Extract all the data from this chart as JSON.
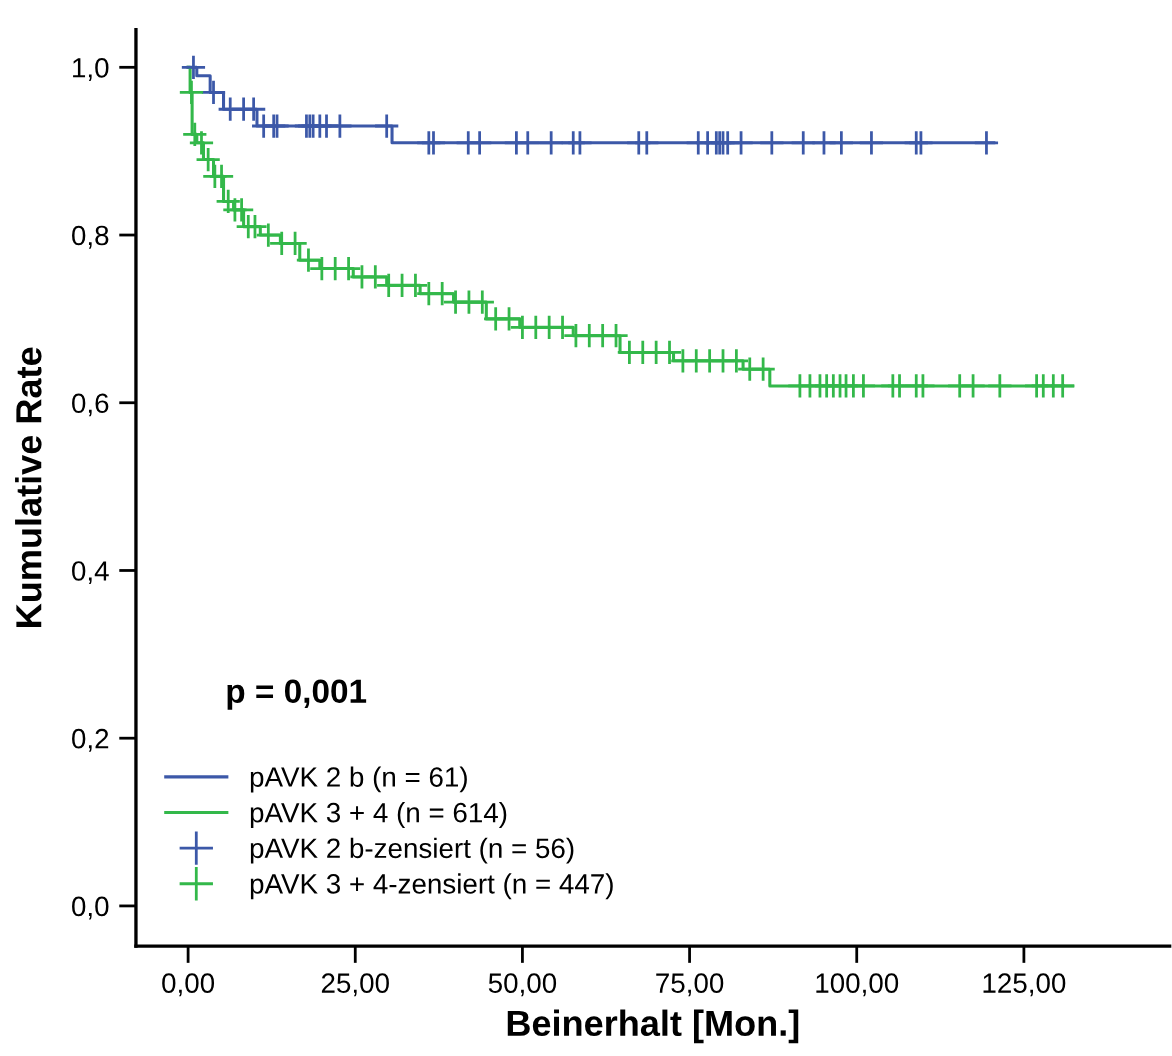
{
  "chart_data": {
    "type": "step",
    "xlabel": "Beinerhalt [Mon.]",
    "ylabel": "Kumulative Rate",
    "xlim": [
      -7.8,
      146.8
    ],
    "ylim": [
      -0.048,
      1.045
    ],
    "xticks": [
      {
        "value": 0,
        "label": "0,00"
      },
      {
        "value": 25,
        "label": "25,00"
      },
      {
        "value": 50,
        "label": "50,00"
      },
      {
        "value": 75,
        "label": "75,00"
      },
      {
        "value": 100,
        "label": "100,00"
      },
      {
        "value": 125,
        "label": "125,00"
      }
    ],
    "yticks": [
      {
        "value": 0,
        "label": "0,0"
      },
      {
        "value": 0.2,
        "label": "0,2"
      },
      {
        "value": 0.4,
        "label": "0,4"
      },
      {
        "value": 0.6,
        "label": "0,6"
      },
      {
        "value": 0.8,
        "label": "0,8"
      },
      {
        "value": 1.0,
        "label": "1,0"
      }
    ],
    "grid": false,
    "legend": "bottom left",
    "annotations": [
      "p = 0,001"
    ],
    "series": [
      {
        "name": "pAVK 2 b (n = 61)",
        "color": "#3c58a8",
        "x": [
          0,
          1.3,
          3.3,
          5.3,
          10.3,
          30.5,
          120.5
        ],
        "values": [
          1.0,
          0.99,
          0.97,
          0.95,
          0.93,
          0.91,
          0.91
        ]
      },
      {
        "name": "pAVK 3 + 4 (n = 614)",
        "color": "#33b84a",
        "x": [
          0,
          0.3,
          0.6,
          1.3,
          2.3,
          3.8,
          5.3,
          6.8,
          8.3,
          10.8,
          13.8,
          16.7,
          19.7,
          24.7,
          29.7,
          34.7,
          39.7,
          44.6,
          49.6,
          57.6,
          64.6,
          72.6,
          83.0,
          87.0,
          132.3
        ],
        "values": [
          1.0,
          0.97,
          0.92,
          0.91,
          0.89,
          0.87,
          0.84,
          0.83,
          0.81,
          0.8,
          0.79,
          0.77,
          0.76,
          0.75,
          0.74,
          0.73,
          0.72,
          0.7,
          0.69,
          0.68,
          0.66,
          0.65,
          0.64,
          0.62,
          0.62
        ]
      },
      {
        "name": "pAVK 2 b-zensiert (n = 56)",
        "type": "scatter",
        "marker": "cross",
        "color": "#3c58a8",
        "x": [
          0.8,
          3.8,
          6.3,
          8.3,
          9.8,
          11.3,
          12.8,
          13.3,
          17.7,
          18.2,
          18.7,
          19.7,
          20.7,
          22.7,
          29.7,
          36.0,
          36.7,
          41.9,
          43.6,
          49.1,
          50.8,
          54.3,
          57.6,
          58.6,
          67.4,
          68.6,
          76.3,
          77.7,
          79.0,
          79.5,
          80.0,
          80.7,
          82.7,
          87.3,
          92.0,
          95.1,
          97.7,
          102.2,
          108.9,
          109.6,
          119.4
        ],
        "values": [
          1.0,
          0.97,
          0.95,
          0.95,
          0.95,
          0.93,
          0.93,
          0.93,
          0.93,
          0.93,
          0.93,
          0.93,
          0.93,
          0.93,
          0.93,
          0.91,
          0.91,
          0.91,
          0.91,
          0.91,
          0.91,
          0.91,
          0.91,
          0.91,
          0.91,
          0.91,
          0.91,
          0.91,
          0.91,
          0.91,
          0.91,
          0.91,
          0.91,
          0.91,
          0.91,
          0.91,
          0.91,
          0.91,
          0.91,
          0.91,
          0.91
        ]
      },
      {
        "name": "pAVK 3 + 4-zensiert (n = 447)",
        "type": "scatter",
        "marker": "cross",
        "color": "#33b84a",
        "x": [
          0.5,
          1,
          2,
          3,
          4,
          5,
          6,
          7,
          8,
          9,
          10,
          12,
          14,
          16,
          18,
          20,
          22,
          24,
          26,
          28,
          30,
          32,
          34,
          36,
          38,
          40,
          42,
          44,
          46,
          48,
          50,
          52,
          54,
          56,
          58,
          60,
          62,
          64,
          66,
          68,
          70,
          72,
          74,
          76,
          78,
          80,
          82,
          84,
          86,
          91.5,
          93.0,
          94.5,
          95.5,
          96.5,
          97.5,
          98.4,
          99.5,
          101.0,
          105.4,
          106.4,
          108.9,
          109.9,
          115.4,
          117.4,
          121.4,
          126.9,
          127.9,
          129.4,
          130.8
        ],
        "values": [
          0.97,
          0.92,
          0.91,
          0.89,
          0.87,
          0.87,
          0.84,
          0.83,
          0.83,
          0.81,
          0.81,
          0.8,
          0.79,
          0.79,
          0.77,
          0.76,
          0.76,
          0.76,
          0.75,
          0.75,
          0.74,
          0.74,
          0.74,
          0.73,
          0.73,
          0.72,
          0.72,
          0.72,
          0.7,
          0.7,
          0.69,
          0.69,
          0.69,
          0.69,
          0.68,
          0.68,
          0.68,
          0.68,
          0.66,
          0.66,
          0.66,
          0.66,
          0.65,
          0.65,
          0.65,
          0.65,
          0.65,
          0.64,
          0.64,
          0.62,
          0.62,
          0.62,
          0.62,
          0.62,
          0.62,
          0.62,
          0.62,
          0.62,
          0.62,
          0.62,
          0.62,
          0.62,
          0.62,
          0.62,
          0.62,
          0.62,
          0.62,
          0.62,
          0.62
        ]
      }
    ]
  }
}
